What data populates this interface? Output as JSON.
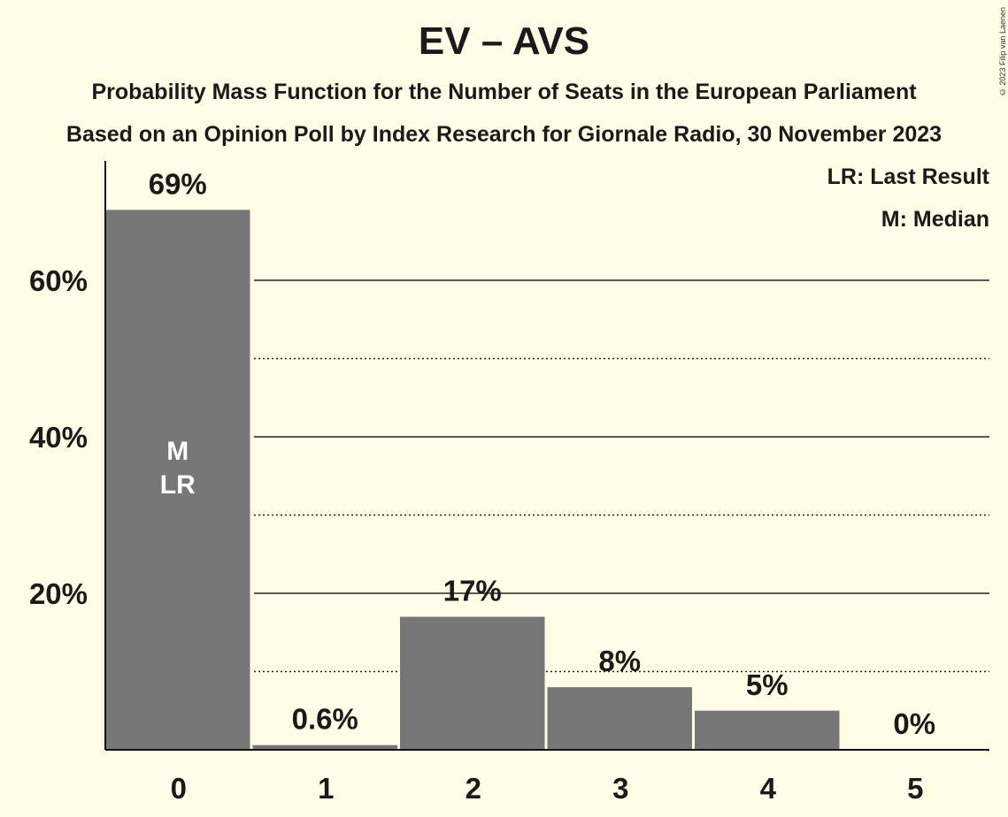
{
  "chart_data": {
    "type": "bar",
    "title": "EV – AVS",
    "subtitle_lines": [
      "Probability Mass Function for the Number of Seats in the European Parliament",
      "Based on an Opinion Poll by Index Research for Giornale Radio, 30 November 2023"
    ],
    "categories": [
      "0",
      "1",
      "2",
      "3",
      "4",
      "5"
    ],
    "values": [
      69,
      0.6,
      17,
      8,
      5,
      0
    ],
    "data_labels": [
      "69%",
      "0.6%",
      "17%",
      "8%",
      "5%",
      "0%"
    ],
    "ylim": [
      0,
      75
    ],
    "yticks": [
      20,
      40,
      60
    ],
    "ytick_labels": [
      "20%",
      "40%",
      "60%"
    ],
    "minor_gridlines": [
      10,
      30,
      50
    ],
    "median_index": 0,
    "last_result_index": 0,
    "median_marker": "M",
    "last_result_marker": "LR",
    "legend": [
      "LR: Last Result",
      "M: Median"
    ],
    "legend_position": "top-right",
    "bar_color": "#777777",
    "background_color": "#fffde6"
  },
  "copyright": "© 2023 Filip van Laenen"
}
